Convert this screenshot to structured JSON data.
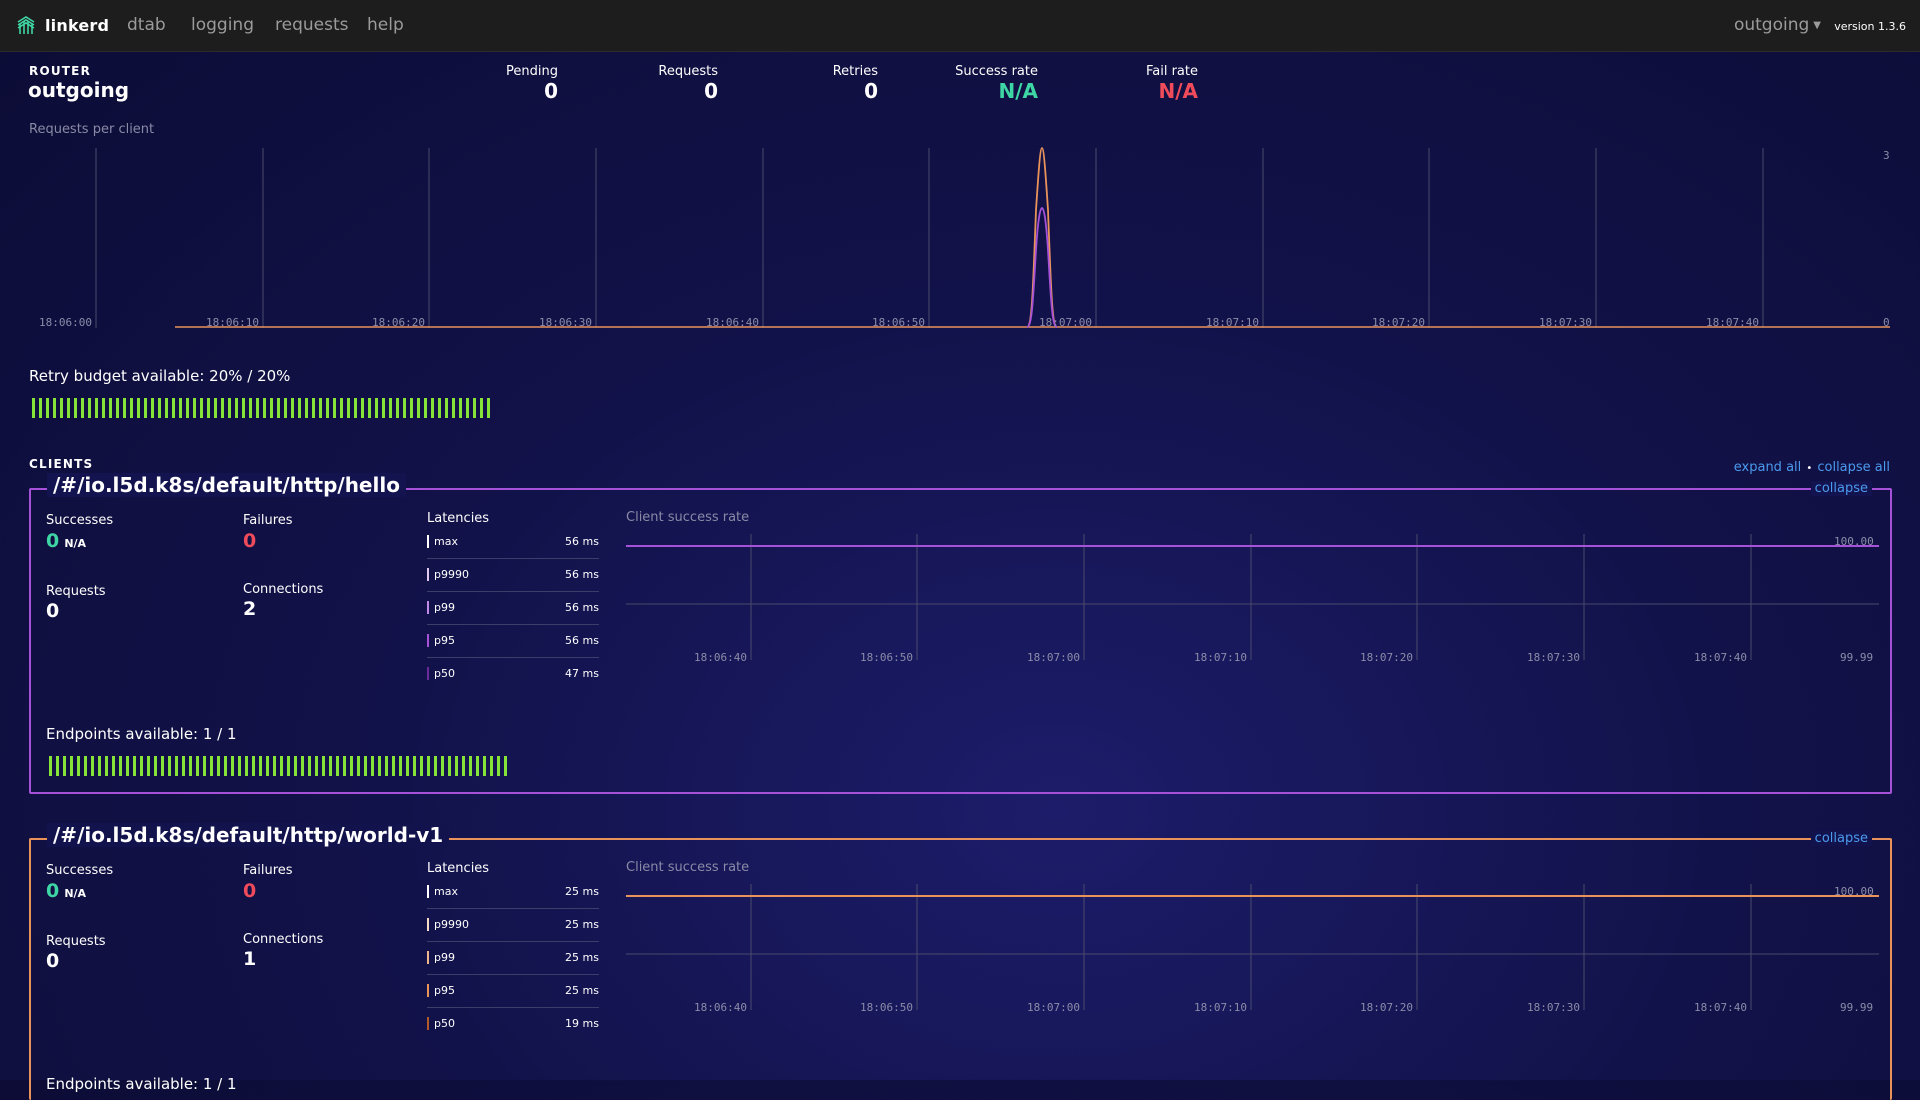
{
  "nav": {
    "brand": "linkerd",
    "links": [
      "dtab",
      "logging",
      "requests",
      "help"
    ],
    "router_select": "outgoing",
    "version": "version 1.3.6"
  },
  "router": {
    "section_label": "ROUTER",
    "name": "outgoing",
    "stats": [
      {
        "label": "Pending",
        "value": "0"
      },
      {
        "label": "Requests",
        "value": "0"
      },
      {
        "label": "Retries",
        "value": "0"
      },
      {
        "label": "Success rate",
        "value": "N/A"
      },
      {
        "label": "Fail rate",
        "value": "N/A"
      }
    ]
  },
  "requests_chart": {
    "title": "Requests per client",
    "x_ticks": [
      "18:06:00",
      "18:06:10",
      "18:06:20",
      "18:06:30",
      "18:06:40",
      "18:06:50",
      "18:07:00",
      "18:07:10",
      "18:07:20",
      "18:07:30",
      "18:07:40"
    ],
    "y_max_label": "3",
    "y_min_label": "0",
    "series_colors": [
      "#e9935b",
      "#a552d8"
    ]
  },
  "retry_budget": {
    "label": "Retry budget available: 20% / 20%",
    "fraction": 1.0
  },
  "clients_section": {
    "label": "CLIENTS",
    "expand_all": "expand all",
    "separator": "•",
    "collapse_all": "collapse all"
  },
  "clients": [
    {
      "title": "/#/io.l5d.k8s/default/http/hello",
      "color": "#a552d8",
      "collapse": "collapse",
      "successes_label": "Successes",
      "successes": "0",
      "success_rate": "N/A",
      "failures_label": "Failures",
      "failures": "0",
      "requests_label": "Requests",
      "requests": "0",
      "connections_label": "Connections",
      "connections": "2",
      "latencies_label": "Latencies",
      "latencies": [
        {
          "name": "max",
          "value": "56 ms"
        },
        {
          "name": "p9990",
          "value": "56 ms"
        },
        {
          "name": "p99",
          "value": "56 ms"
        },
        {
          "name": "p95",
          "value": "56 ms"
        },
        {
          "name": "p50",
          "value": "47 ms"
        }
      ],
      "chart_title": "Client success rate",
      "chart_ticks": [
        "18:06:40",
        "18:06:50",
        "18:07:00",
        "18:07:10",
        "18:07:20",
        "18:07:30",
        "18:07:40"
      ],
      "chart_y_top": "100.00",
      "chart_y_bottom": "99.99",
      "endpoints_label": "Endpoints available: 1 / 1",
      "endpoints_fraction": 1.0
    },
    {
      "title": "/#/io.l5d.k8s/default/http/world-v1",
      "color": "#e9935b",
      "collapse": "collapse",
      "successes_label": "Successes",
      "successes": "0",
      "success_rate": "N/A",
      "failures_label": "Failures",
      "failures": "0",
      "requests_label": "Requests",
      "requests": "0",
      "connections_label": "Connections",
      "connections": "1",
      "latencies_label": "Latencies",
      "latencies": [
        {
          "name": "max",
          "value": "25 ms"
        },
        {
          "name": "p9990",
          "value": "25 ms"
        },
        {
          "name": "p99",
          "value": "25 ms"
        },
        {
          "name": "p95",
          "value": "25 ms"
        },
        {
          "name": "p50",
          "value": "19 ms"
        }
      ],
      "chart_title": "Client success rate",
      "chart_ticks": [
        "18:06:40",
        "18:06:50",
        "18:07:00",
        "18:07:10",
        "18:07:20",
        "18:07:30",
        "18:07:40"
      ],
      "chart_y_top": "100.00",
      "chart_y_bottom": "99.99",
      "endpoints_label": "Endpoints available: 1 / 1",
      "endpoints_fraction": 1.0
    }
  ],
  "colors": {
    "success": "#3ed6a4",
    "failure": "#ef4b5a",
    "bar_green": "#86e338",
    "link": "#4b9aee"
  }
}
